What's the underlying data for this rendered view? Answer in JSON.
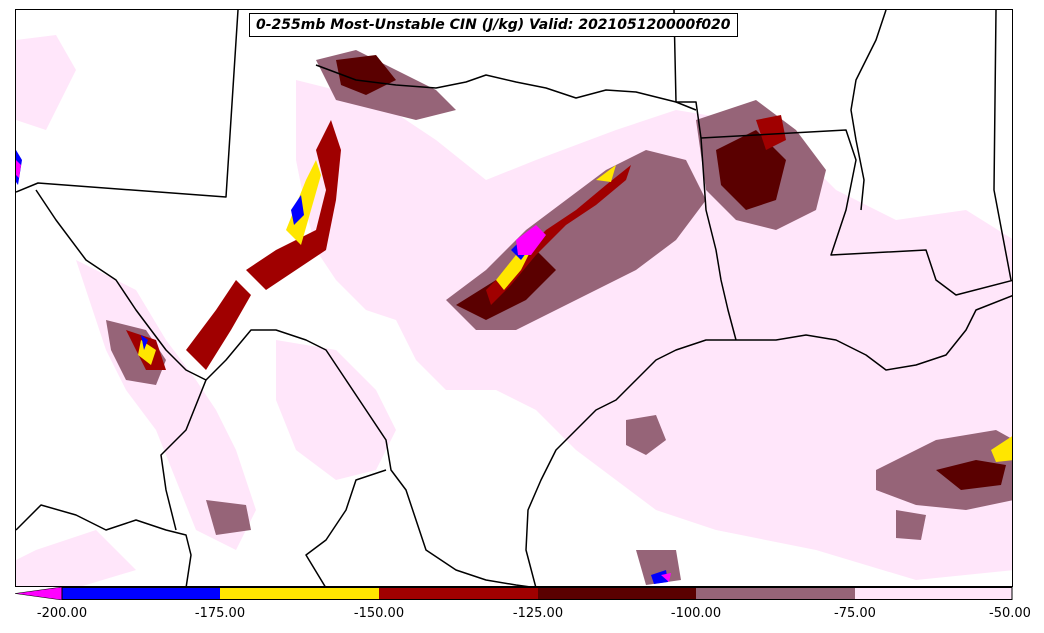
{
  "title": "0-255mb Most-Unstable CIN (J/kg) Valid: 202105120000f020",
  "colorbar": {
    "bins": [
      {
        "from": -200,
        "to": -175,
        "color": "#0000ff"
      },
      {
        "from": -175,
        "to": -150,
        "color": "#ffe600"
      },
      {
        "from": -150,
        "to": -125,
        "color": "#a00000"
      },
      {
        "from": -125,
        "to": -100,
        "color": "#5a0000"
      },
      {
        "from": -100,
        "to": -75,
        "color": "#966478"
      },
      {
        "from": -75,
        "to": -50,
        "color": "#ffe6fa"
      }
    ],
    "under_color": "#ff00ff",
    "tick_labels": [
      "-200.00",
      "-175.00",
      "-150.00",
      "-125.00",
      "-100.00",
      "-75.00",
      "-50.00"
    ]
  },
  "map": {
    "region": "Texas / Southern Plains",
    "background": "#ffffff",
    "boundary_color": "#000000"
  }
}
